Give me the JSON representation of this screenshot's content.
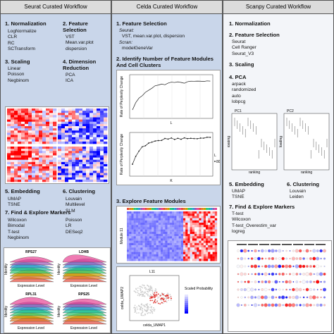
{
  "seurat": {
    "title": "Seurat Curated Workflow",
    "normalization": {
      "heading": "1. Normalization",
      "items": [
        "LogNormalize",
        "CLR",
        "RC",
        "SCTransform"
      ]
    },
    "feature_selection": {
      "heading": "2. Feature Selection",
      "items": [
        "VST",
        "Mean.var.plot",
        "dispersion"
      ]
    },
    "scaling": {
      "heading": "3. Scaling",
      "items": [
        "Linear",
        "Poisson",
        "Negbinom"
      ]
    },
    "dimension_reduction": {
      "heading": "4. Dimension Reduction",
      "items": [
        "PCA",
        "ICA"
      ]
    },
    "embedding": {
      "heading": "5. Embedding",
      "items": [
        "UMAP",
        "TSNE"
      ]
    },
    "clustering": {
      "heading": "6. Clustering",
      "items": [
        "Louvain",
        "Multilevel",
        "SLM"
      ]
    },
    "markers": {
      "heading": "7. Find & Explore Markers",
      "items": [
        "Wilcoxon",
        "Bimodal",
        "T-test",
        "Negbinom"
      ],
      "items_2": [
        "Poisson",
        "LR",
        "DESeq2"
      ]
    },
    "ridge_plots": {
      "titles": [
        "RPS27",
        "LDHB",
        "RPL31",
        "RPS25"
      ],
      "x_label": "Expression Level",
      "y_label": "Identity"
    }
  },
  "celda": {
    "title": "Celda Curated Workflow",
    "feature_selection": {
      "heading": "1. Feature Selection",
      "seurat_label": "Seurat:",
      "seurat_methods": "VST, mean.var.plot, dispersion",
      "scran_label": "Scran:",
      "scran_methods": "modelGeneVar"
    },
    "modules": {
      "heading": "2. Identify Number of Feature Modules And Cell Clusters",
      "y_label": "Rate of Perplexity Change",
      "x_label_top": "L",
      "x_label_bottom": "K",
      "legend_title": "L",
      "legend_value": "80"
    },
    "explore": {
      "heading": "3. Explore Feature Modules",
      "module_label": "Module 11",
      "umap_title": "L11",
      "umap_x": "celda_UMAP1",
      "umap_y": "celda_UMAP2",
      "legend_title": "Scaled Probability"
    }
  },
  "scanpy": {
    "title": "Scanpy Curated Workflow",
    "normalization": {
      "heading": "1. Normalization"
    },
    "feature_selection": {
      "heading": "2. Feature Selection",
      "items": [
        "Seurat",
        "Cell Ranger",
        "Seurat_V3"
      ]
    },
    "scaling": {
      "heading": "3. Scaling"
    },
    "pca": {
      "heading": "4. PCA",
      "items": [
        "arpack",
        "randomized",
        "auto",
        "lobpcg"
      ]
    },
    "pc_plots": {
      "titles": [
        "PC1",
        "PC2"
      ],
      "y_label": "loading",
      "x_label": "ranking"
    },
    "embedding": {
      "heading": "5. Embedding",
      "items": [
        "UMAP",
        "TSNE"
      ]
    },
    "clustering": {
      "heading": "6. Clustering",
      "items": [
        "Louvain",
        "Leiden"
      ]
    },
    "markers": {
      "heading": "7. Find & Explore Markers",
      "items": [
        "T-test",
        "Wilcoxon",
        "T-test_Overestim_var",
        "logreg"
      ]
    }
  }
}
